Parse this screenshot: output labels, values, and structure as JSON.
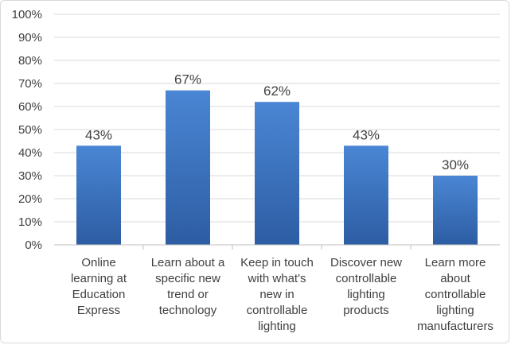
{
  "chart_data": {
    "type": "bar",
    "categories": [
      [
        "Online",
        "learning at",
        "Education",
        "Express"
      ],
      [
        "Learn about a",
        "specific new",
        "trend or",
        "technology"
      ],
      [
        "Keep in touch",
        "with what's",
        "new in",
        "controllable",
        "lighting"
      ],
      [
        "Discover new",
        "controllable",
        "lighting",
        "products"
      ],
      [
        "Learn more",
        "about",
        "controllable",
        "lighting",
        "manufacturers"
      ]
    ],
    "values": [
      43,
      67,
      62,
      43,
      30
    ],
    "data_labels": [
      "43%",
      "67%",
      "62%",
      "43%",
      "30%"
    ],
    "ylim": [
      0,
      100
    ],
    "y_ticks": [
      "0%",
      "10%",
      "20%",
      "30%",
      "40%",
      "50%",
      "60%",
      "70%",
      "80%",
      "90%",
      "100%"
    ],
    "grid": true,
    "bar_color_top": "#4a86d4",
    "bar_color_bottom": "#2d5da3",
    "grid_color": "#d9d9d9"
  }
}
